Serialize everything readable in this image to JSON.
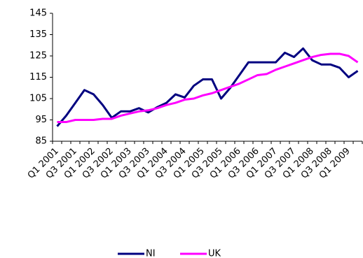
{
  "chart_data": {
    "type": "line",
    "categories": [
      "Q1 2001",
      null,
      "Q3 2001",
      null,
      "Q1 2002",
      null,
      "Q3 2002",
      null,
      "Q1 2003",
      null,
      "Q3 2003",
      null,
      "Q1 2004",
      null,
      "Q3 2004",
      null,
      "Q1 2005",
      null,
      "Q3 2005",
      null,
      "Q1 2006",
      null,
      "Q3 2006",
      null,
      "Q1 2007",
      null,
      "Q3 2007",
      null,
      "Q1 2008",
      null,
      "Q3 2008",
      null,
      "Q1 2009",
      null
    ],
    "series": [
      {
        "name": "NI",
        "color": "#000080",
        "values": [
          92,
          97,
          103,
          109,
          107,
          102,
          96,
          99,
          99,
          100.5,
          98.5,
          101,
          103,
          107,
          105.5,
          111,
          114,
          114,
          105,
          110,
          116,
          122,
          122,
          122,
          122,
          126.5,
          124.5,
          128.5,
          123,
          121,
          121,
          119.5,
          115,
          118
        ]
      },
      {
        "name": "UK",
        "color": "#ff00ff",
        "values": [
          94,
          94,
          95,
          95,
          95,
          95.5,
          95.5,
          97,
          98,
          99,
          99.5,
          100.5,
          102,
          103,
          104.5,
          105,
          106.5,
          107.5,
          109,
          110.5,
          112,
          114,
          116,
          116.5,
          118.5,
          120,
          121.5,
          123,
          124.5,
          125.5,
          126,
          126,
          125,
          122
        ]
      }
    ],
    "ylim": [
      85,
      145
    ],
    "yticks": [
      85,
      95,
      105,
      115,
      125,
      135,
      145
    ],
    "legend": "bottom"
  }
}
